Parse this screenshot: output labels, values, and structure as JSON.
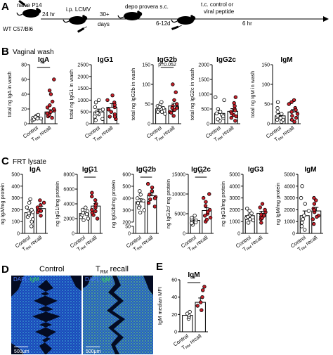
{
  "colors": {
    "control": "#ffffff",
    "trm": "#c8202a",
    "dapi": "#1f4bd6",
    "igm": "#39d353",
    "axis": "#000000"
  },
  "panelA": {
    "letter": "A",
    "step1_top": "naive P14",
    "step1_bottom": "WT C57/Bl6",
    "arrow1": "24 hr",
    "step2_top": "i.p. LCMV",
    "arrow2_a": "30+",
    "arrow2_b": "days",
    "step3_top": "depo provera s.c.",
    "arrow3": "6-12d",
    "step4_top_a": "t.c. control or",
    "step4_top_b": "viral peptide",
    "arrow4": "6 hr"
  },
  "panelB": {
    "letter": "B",
    "subtitle": "Vaginal wash"
  },
  "panelC": {
    "letter": "C",
    "subtitle": "FRT lysate"
  },
  "panelD": {
    "letter": "D",
    "title_control": "Control",
    "title_trm": "T",
    "title_trm_sub": "RM",
    "title_trm_rest": " recall",
    "legend_dapi": "DAPI,",
    "legend_igm": "IgM",
    "scalebar": "500μm"
  },
  "panelE": {
    "letter": "E"
  },
  "chart_data": [
    {
      "id": "B-IgA",
      "type": "bar",
      "panel": "B",
      "title": "IgA",
      "ylabel": "total ng IgA in wash",
      "ylim": [
        0,
        80
      ],
      "yticks": [
        0,
        20,
        40,
        60,
        80
      ],
      "categories": [
        "Control",
        "TRM recall"
      ],
      "means": [
        8,
        16
      ],
      "sem": [
        1.5,
        3
      ],
      "points": [
        [
          5,
          7,
          8,
          9,
          10,
          11,
          12,
          6,
          9,
          7
        ],
        [
          8,
          10,
          12,
          14,
          16,
          18,
          20,
          25,
          30,
          40,
          60,
          45,
          22
        ]
      ],
      "significance": "*"
    },
    {
      "id": "B-IgG1",
      "type": "bar",
      "panel": "B",
      "title": "IgG1",
      "ylabel": "total ng IgG1 in wash",
      "ylim": [
        0,
        2500
      ],
      "yticks": [
        0,
        500,
        1000,
        1500,
        2000,
        2500
      ],
      "categories": [
        "Control",
        "TRM recall"
      ],
      "means": [
        500,
        700
      ],
      "sem": [
        120,
        150
      ],
      "points": [
        [
          150,
          300,
          400,
          500,
          600,
          700,
          900,
          1000,
          200,
          450
        ],
        [
          200,
          300,
          500,
          700,
          900,
          1000,
          1200,
          400,
          600,
          800,
          300
        ]
      ],
      "significance": ""
    },
    {
      "id": "B-IgG2b",
      "type": "bar",
      "panel": "B",
      "title": "IgG2b",
      "ylabel": "total ng IgG2b in wash",
      "ylim": [
        0,
        150
      ],
      "yticks": [
        0,
        50,
        100,
        150
      ],
      "categories": [
        "Control",
        "TRM recall"
      ],
      "means": [
        38,
        45
      ],
      "sem": [
        5,
        7
      ],
      "points": [
        [
          25,
          30,
          35,
          40,
          45,
          50,
          55,
          30,
          38,
          42
        ],
        [
          20,
          30,
          35,
          40,
          45,
          50,
          60,
          80,
          100,
          40,
          35,
          28
        ]
      ],
      "significance": "p=0.052"
    },
    {
      "id": "B-IgG2c",
      "type": "bar",
      "panel": "B",
      "title": "IgG2c",
      "ylabel": "total ng IgG2c in wash",
      "ylim": [
        0,
        2000
      ],
      "yticks": [
        0,
        500,
        1000,
        1500,
        2000
      ],
      "categories": [
        "Control",
        "TRM recall"
      ],
      "means": [
        350,
        420
      ],
      "sem": [
        90,
        90
      ],
      "points": [
        [
          100,
          200,
          300,
          400,
          500,
          800,
          900,
          150,
          250,
          350
        ],
        [
          100,
          200,
          300,
          400,
          500,
          600,
          700,
          900,
          250,
          350,
          450
        ]
      ],
      "significance": ""
    },
    {
      "id": "B-IgM",
      "type": "bar",
      "panel": "B",
      "title": "IgM",
      "ylabel": "total ng IgM in wash",
      "ylim": [
        0,
        150
      ],
      "yticks": [
        0,
        50,
        100,
        150
      ],
      "categories": [
        "Control",
        "TRM recall"
      ],
      "means": [
        20,
        30
      ],
      "sem": [
        6,
        6
      ],
      "points": [
        [
          5,
          10,
          15,
          20,
          30,
          40,
          55,
          10,
          25
        ],
        [
          5,
          10,
          20,
          30,
          40,
          50,
          55,
          60,
          15,
          25,
          35
        ]
      ],
      "significance": ""
    },
    {
      "id": "C-IgA",
      "type": "bar",
      "panel": "C",
      "title": "IgA",
      "ylabel": "ng IgA/mg protein",
      "ylim": [
        0,
        500
      ],
      "yticks": [
        0,
        100,
        200,
        300,
        400,
        500
      ],
      "categories": [
        "Control",
        "TRM recall"
      ],
      "means": [
        175,
        210
      ],
      "sem": [
        25,
        20
      ],
      "points": [
        [
          60,
          100,
          140,
          160,
          180,
          200,
          220,
          260,
          290,
          120,
          170
        ],
        [
          150,
          180,
          200,
          220,
          240,
          260,
          280,
          190
        ]
      ],
      "significance": ""
    },
    {
      "id": "C-IgG1",
      "type": "bar",
      "panel": "C",
      "title": "IgG1",
      "ylabel": "ng IgG1/mg protein",
      "ylim": [
        0,
        8000
      ],
      "yticks": [
        0,
        2000,
        4000,
        6000,
        8000
      ],
      "categories": [
        "Control",
        "TRM recall"
      ],
      "means": [
        2700,
        3700
      ],
      "sem": [
        250,
        350
      ],
      "points": [
        [
          1800,
          2200,
          2500,
          2800,
          3000,
          3200,
          3500,
          2000,
          2600
        ],
        [
          2000,
          2500,
          3000,
          3500,
          4000,
          4500,
          5000,
          5500,
          3200,
          3800,
          2800
        ]
      ],
      "significance": "*"
    },
    {
      "id": "C-IgG2b",
      "type": "bar",
      "panel": "C",
      "title": "IgG2b",
      "ylabel": "ng IgG2b/mg protein",
      "ylim": [
        0,
        600
      ],
      "yticks": [
        0,
        50,
        200,
        300,
        400,
        500,
        600
      ],
      "axis_break": [
        50,
        200
      ],
      "categories": [
        "Control",
        "TRM recall"
      ],
      "means": [
        370,
        420
      ],
      "sem": [
        25,
        25
      ],
      "points": [
        [
          280,
          300,
          330,
          360,
          380,
          400,
          430,
          460,
          320
        ],
        [
          330,
          360,
          390,
          410,
          430,
          460,
          490,
          520,
          400
        ]
      ],
      "significance": "*"
    },
    {
      "id": "C-IgG2c",
      "type": "bar",
      "panel": "C",
      "title": "IgG2c",
      "ylabel": "ng IgG2c/ mg protein",
      "ylim": [
        0,
        15000
      ],
      "yticks": [
        0,
        5000,
        10000,
        15000
      ],
      "categories": [
        "Control",
        "TRM recall"
      ],
      "means": [
        3300,
        5800
      ],
      "sem": [
        350,
        700
      ],
      "points": [
        [
          2200,
          2600,
          3000,
          3300,
          3600,
          4000,
          4500,
          2800
        ],
        [
          3000,
          3500,
          4000,
          5000,
          6000,
          7000,
          8000,
          9000,
          10000,
          4500,
          5500
        ]
      ],
      "significance": "**"
    },
    {
      "id": "C-IgG3",
      "type": "bar",
      "panel": "C",
      "title": "IgG3",
      "ylabel": "ng IgG3/mg protein",
      "ylim": [
        0,
        5000
      ],
      "yticks": [
        0,
        1000,
        2000,
        3000,
        4000,
        5000
      ],
      "categories": [
        "Control",
        "TRM recall"
      ],
      "means": [
        1500,
        1700
      ],
      "sem": [
        150,
        170
      ],
      "points": [
        [
          900,
          1100,
          1300,
          1500,
          1700,
          1900,
          2100,
          1400,
          1200
        ],
        [
          900,
          1200,
          1400,
          1600,
          1800,
          2000,
          2200,
          2500,
          1500,
          1300
        ]
      ],
      "significance": ""
    },
    {
      "id": "C-IgM",
      "type": "bar",
      "panel": "C",
      "title": "IgM",
      "ylabel": "ng IgM/mg protein",
      "ylim": [
        0,
        5000
      ],
      "yticks": [
        0,
        1000,
        2000,
        3000,
        4000,
        5000
      ],
      "categories": [
        "Control",
        "TRM recall"
      ],
      "means": [
        1500,
        1900
      ],
      "sem": [
        400,
        300
      ],
      "points": [
        [
          300,
          600,
          900,
          1200,
          1500,
          1900,
          2500,
          3000,
          4000
        ],
        [
          800,
          1200,
          1500,
          1800,
          2100,
          2500,
          2800,
          3000,
          1400,
          2000
        ]
      ],
      "significance": ""
    },
    {
      "id": "E-IgM",
      "type": "bar",
      "panel": "E",
      "title": "IgM",
      "ylabel": "IgM median MFI",
      "ylim": [
        0,
        60
      ],
      "yticks": [
        0,
        20,
        40,
        60
      ],
      "categories": [
        "Control",
        "TRM recall"
      ],
      "means": [
        19,
        34
      ],
      "sem": [
        2,
        5
      ],
      "points": [
        [
          15,
          17,
          19,
          21,
          23
        ],
        [
          25,
          30,
          34,
          40,
          48,
          52
        ]
      ],
      "significance": "*"
    }
  ]
}
